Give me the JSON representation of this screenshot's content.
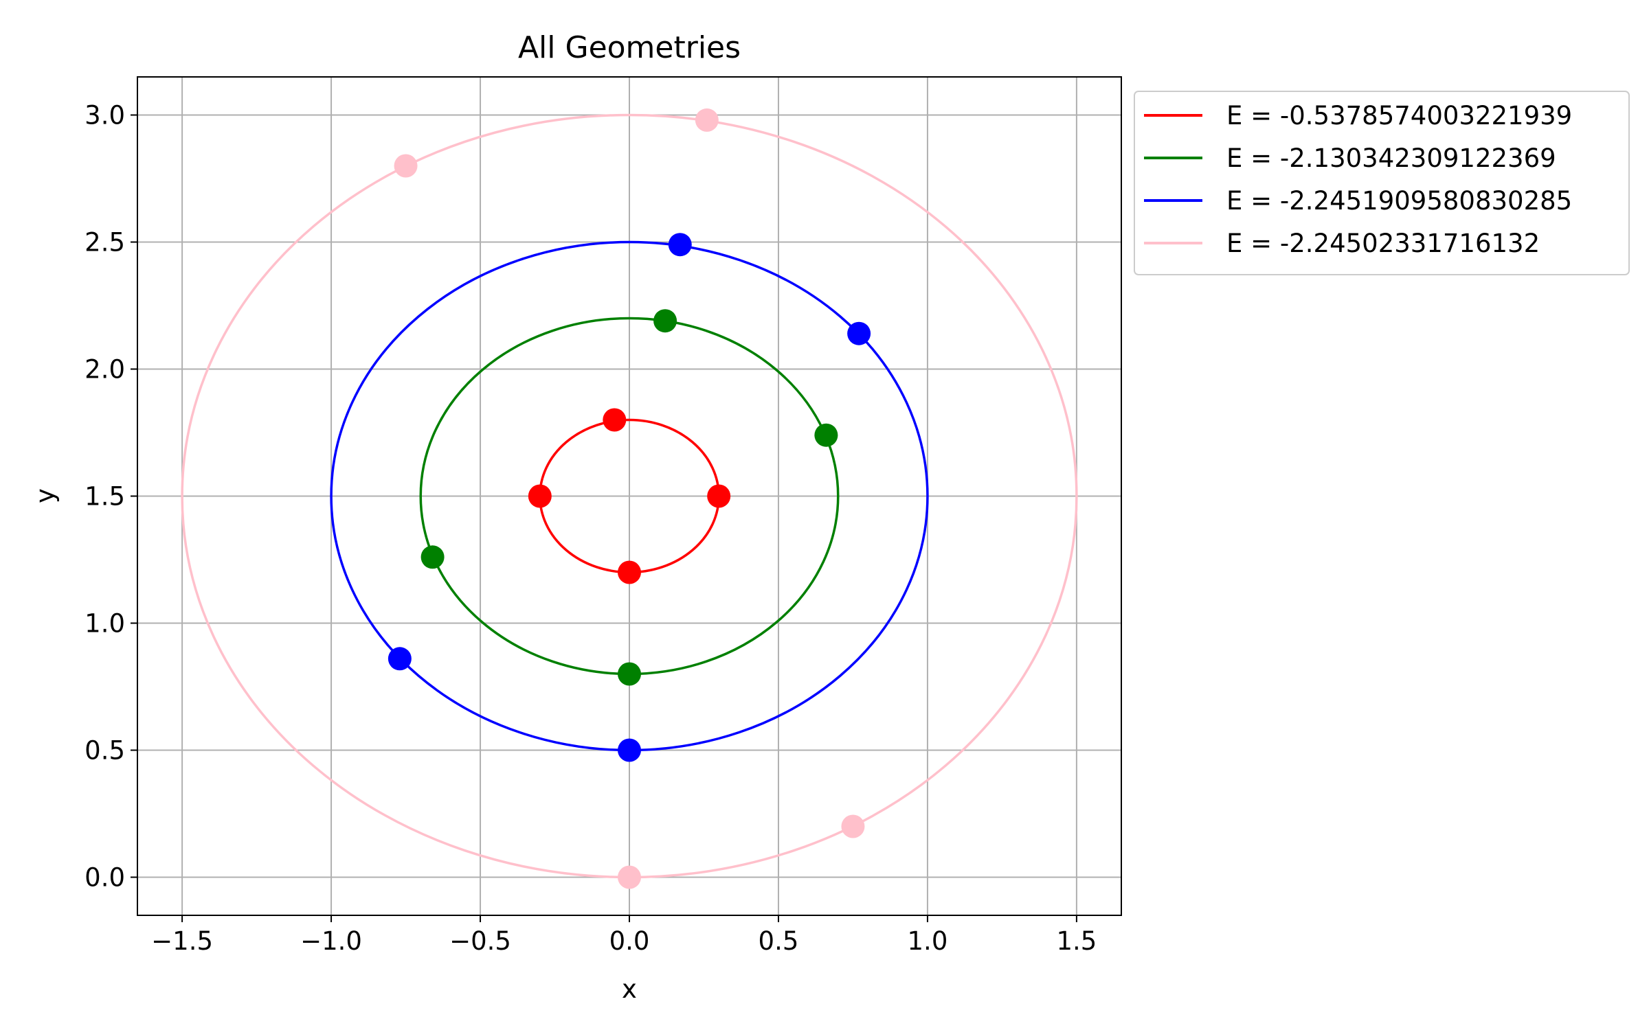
{
  "chart_data": {
    "type": "scatter",
    "title": "All Geometries",
    "xlabel": "x",
    "ylabel": "y",
    "xlim": [
      -1.65,
      1.65
    ],
    "ylim": [
      -0.15,
      3.15
    ],
    "xticks": [
      -1.5,
      -1.0,
      -0.5,
      0.0,
      0.5,
      1.0,
      1.5
    ],
    "xtick_labels": [
      "−1.5",
      "−1.0",
      "−0.5",
      "0.0",
      "0.5",
      "1.0",
      "1.5"
    ],
    "yticks": [
      0.0,
      0.5,
      1.0,
      1.5,
      2.0,
      2.5,
      3.0
    ],
    "ytick_labels": [
      "0.0",
      "0.5",
      "1.0",
      "1.5",
      "2.0",
      "2.5",
      "3.0"
    ],
    "grid": true,
    "legend_position": "outside-top-right",
    "series": [
      {
        "name": "E = -0.5378574003221939",
        "color": "#ff0000",
        "ellipse": {
          "cx": 0.0,
          "cy": 1.5,
          "rx": 0.3,
          "ry": 0.3
        },
        "points": [
          [
            -0.05,
            1.8
          ],
          [
            -0.3,
            1.5
          ],
          [
            0.3,
            1.5
          ],
          [
            0.0,
            1.2
          ]
        ]
      },
      {
        "name": "E = -2.130342309122369",
        "color": "#008000",
        "ellipse": {
          "cx": 0.0,
          "cy": 1.5,
          "rx": 0.7,
          "ry": 0.7
        },
        "points": [
          [
            0.12,
            2.19
          ],
          [
            0.66,
            1.74
          ],
          [
            -0.66,
            1.26
          ],
          [
            0.0,
            0.8
          ]
        ]
      },
      {
        "name": "E = -2.2451909580830285",
        "color": "#0000ff",
        "ellipse": {
          "cx": 0.0,
          "cy": 1.5,
          "rx": 1.0,
          "ry": 1.0
        },
        "points": [
          [
            0.17,
            2.49
          ],
          [
            0.77,
            2.14
          ],
          [
            -0.77,
            0.86
          ],
          [
            0.0,
            0.5
          ]
        ]
      },
      {
        "name": "E = -2.24502331716132",
        "color": "#ffc0cb",
        "ellipse": {
          "cx": 0.0,
          "cy": 1.5,
          "rx": 1.5,
          "ry": 1.5
        },
        "points": [
          [
            0.26,
            2.98
          ],
          [
            -0.75,
            2.8
          ],
          [
            0.75,
            0.2
          ],
          [
            0.0,
            0.0
          ]
        ]
      }
    ]
  }
}
